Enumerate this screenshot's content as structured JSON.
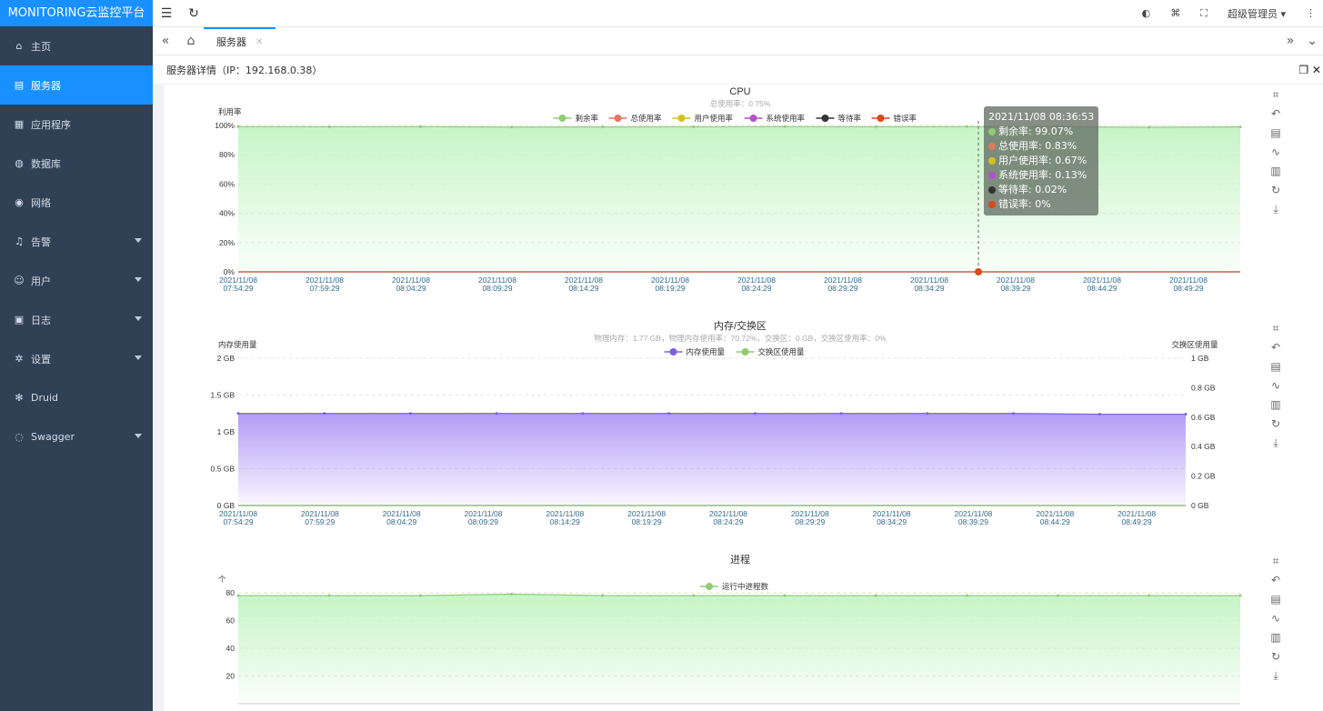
{
  "app": {
    "title": "MONITORING云监控平台"
  },
  "sidebar": {
    "items": [
      {
        "label": "主页",
        "icon": "home-icon",
        "active": false,
        "has_children": false
      },
      {
        "label": "服务器",
        "icon": "server-icon",
        "active": true,
        "has_children": false
      },
      {
        "label": "应用程序",
        "icon": "app-icon",
        "active": false,
        "has_children": false
      },
      {
        "label": "数据库",
        "icon": "database-icon",
        "active": false,
        "has_children": false
      },
      {
        "label": "网络",
        "icon": "network-icon",
        "active": false,
        "has_children": false
      },
      {
        "label": "告警",
        "icon": "bell-icon",
        "active": false,
        "has_children": true
      },
      {
        "label": "用户",
        "icon": "user-icon",
        "active": false,
        "has_children": true
      },
      {
        "label": "日志",
        "icon": "log-icon",
        "active": false,
        "has_children": true
      },
      {
        "label": "设置",
        "icon": "gear-icon",
        "active": false,
        "has_children": true
      },
      {
        "label": "Druid",
        "icon": "druid-icon",
        "active": false,
        "has_children": false
      },
      {
        "label": "Swagger",
        "icon": "swagger-icon",
        "active": false,
        "has_children": true
      }
    ]
  },
  "topbar": {
    "user_label": "超级管理员"
  },
  "tabs": {
    "items": [
      {
        "label": "服务器",
        "active": true
      }
    ]
  },
  "page": {
    "title": "服务器详情（IP：192.168.0.38）"
  },
  "colors": {
    "brand": "#1890ff",
    "sidebar_bg": "#304156",
    "cpu_area": "#c6f5c6",
    "mem_area": "#b29cf5"
  },
  "time_labels": [
    "2021/11/08\n07:54:29",
    "2021/11/08\n07:59:29",
    "2021/11/08\n08:04:29",
    "2021/11/08\n08:09:29",
    "2021/11/08\n08:14:29",
    "2021/11/08\n08:19:29",
    "2021/11/08\n08:24:29",
    "2021/11/08\n08:29:29",
    "2021/11/08\n08:34:29",
    "2021/11/08\n08:39:29",
    "2021/11/08\n08:44:29",
    "2021/11/08\n08:49:29"
  ],
  "chart_data": [
    {
      "type": "area",
      "title": "CPU",
      "subtitle": "总使用率：0.75%",
      "ylabel": "利用率",
      "ylim": [
        0,
        100
      ],
      "yticks": [
        "0%",
        "20%",
        "40%",
        "60%",
        "80%",
        "100%"
      ],
      "legend": [
        "剩余率",
        "总使用率",
        "用户使用率",
        "系统使用率",
        "等待率",
        "错误率"
      ],
      "legend_colors": [
        "#91cc75",
        "#e07a5f",
        "#d4c21a",
        "#b452c8",
        "#333333",
        "#d94a1a"
      ],
      "series": [
        {
          "name": "剩余率",
          "values": [
            99.2,
            99.1,
            99.2,
            98.9,
            99.0,
            99.1,
            99.2,
            99.1,
            99.2,
            99.07,
            98.8,
            99.0
          ]
        },
        {
          "name": "错误率",
          "values": [
            0,
            0,
            0,
            0,
            0,
            0,
            0,
            0,
            0,
            0,
            0,
            0
          ]
        }
      ],
      "tooltip": {
        "time": "2021/11/08 08:36:53",
        "rows": [
          "剩余率: 99.07%",
          "总使用率: 0.83%",
          "用户使用率: 0.67%",
          "系统使用率: 0.13%",
          "等待率: 0.02%",
          "错误率: 0%"
        ]
      }
    },
    {
      "type": "area",
      "title": "内存/交换区",
      "subtitle": "物理内存：1.77 GB，物理内存使用率：70.72%，交换区：0 GB，交换区使用率：0%",
      "ylabel": "内存使用量",
      "ylabel_right": "交换区使用量",
      "ylim": [
        0,
        2
      ],
      "yticks": [
        "0 GB",
        "0.5 GB",
        "1 GB",
        "1.5 GB",
        "2 GB"
      ],
      "yticks_right": [
        "0 GB",
        "0.2 GB",
        "0.4 GB",
        "0.6 GB",
        "0.8 GB",
        "1 GB"
      ],
      "legend": [
        "内存使用量",
        "交换区使用量"
      ],
      "legend_colors": [
        "#7b61d9",
        "#91cc75"
      ],
      "series": [
        {
          "name": "内存使用量",
          "values": [
            1.25,
            1.25,
            1.25,
            1.25,
            1.25,
            1.25,
            1.25,
            1.25,
            1.25,
            1.25,
            1.24,
            1.24
          ]
        },
        {
          "name": "交换区使用量",
          "values": [
            0,
            0,
            0,
            0,
            0,
            0,
            0,
            0,
            0,
            0,
            0,
            0
          ]
        }
      ]
    },
    {
      "type": "area",
      "title": "进程",
      "ylabel": "个",
      "ylim": [
        0,
        80
      ],
      "yticks": [
        "20",
        "40",
        "60",
        "80"
      ],
      "legend": [
        "运行中进程数"
      ],
      "legend_colors": [
        "#91cc75"
      ],
      "series": [
        {
          "name": "运行中进程数",
          "values": [
            78,
            78,
            78,
            79,
            78,
            78,
            78,
            78,
            78,
            78,
            78,
            78
          ]
        }
      ]
    }
  ]
}
